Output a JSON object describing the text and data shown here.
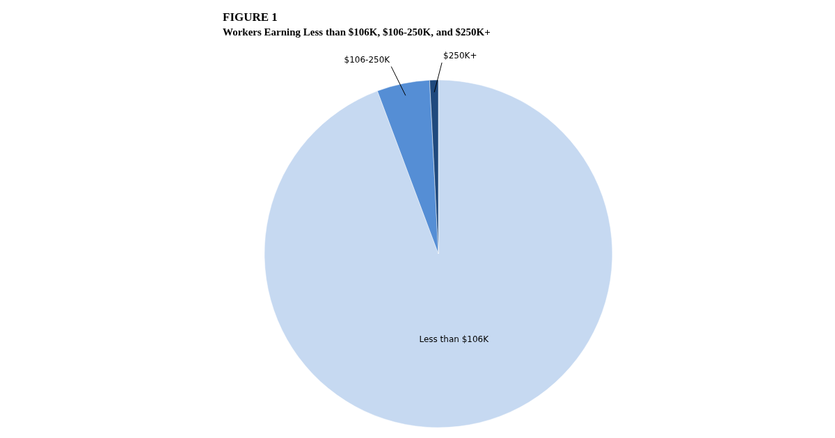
{
  "chart_data": {
    "type": "pie",
    "title": "FIGURE 1",
    "subtitle": "Workers Earning Less than $106K, $106-250K, and $250K+",
    "categories": [
      "Less than $106K",
      "$106-250K",
      "$250K+"
    ],
    "values": [
      94.3,
      4.9,
      0.8
    ],
    "colors": [
      "#c6d9f1",
      "#558ed5",
      "#1f497d"
    ]
  }
}
